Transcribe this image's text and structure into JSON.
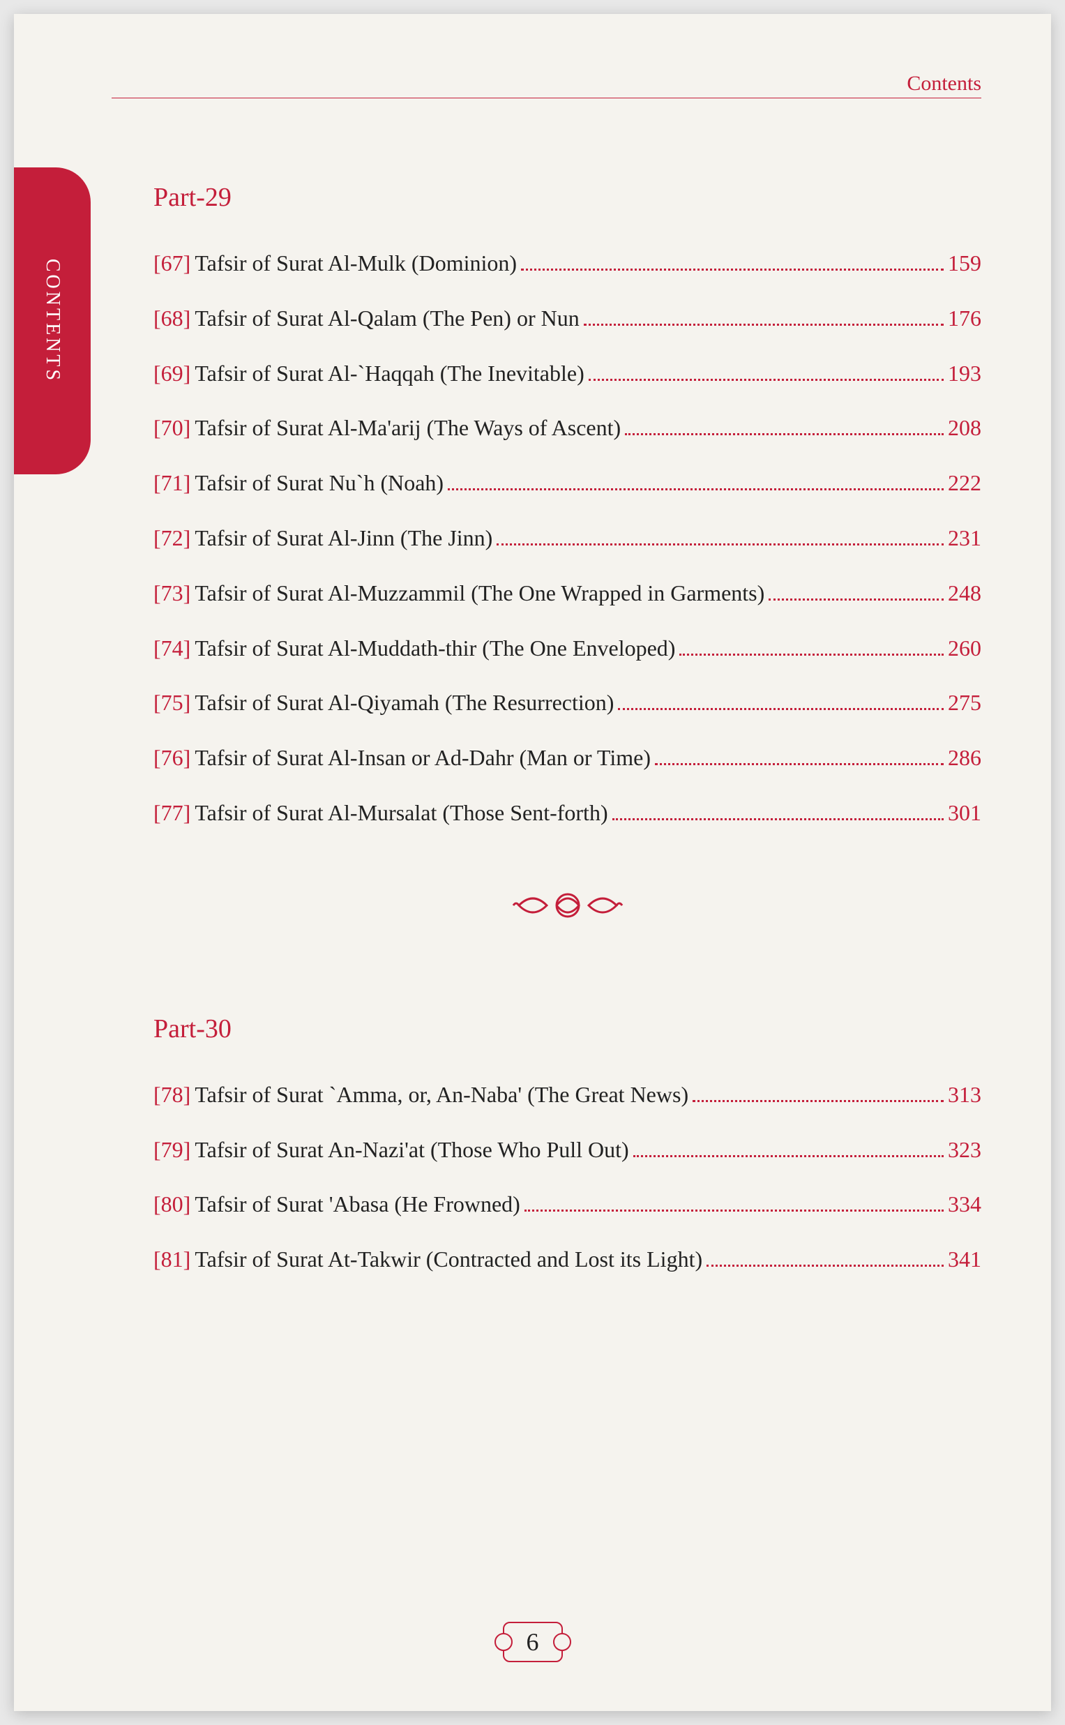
{
  "header": {
    "label": "Contents"
  },
  "sideTab": {
    "text": "CONTENTS"
  },
  "pageNumber": "6",
  "colors": {
    "accent": "#c41e3a",
    "text": "#222222",
    "background": "#f5f3ee"
  },
  "sections": [
    {
      "heading": "Part-29",
      "entries": [
        {
          "num": "[67]",
          "title": "Tafsir of Surat Al-Mulk (Dominion)",
          "page": "159"
        },
        {
          "num": "[68]",
          "title": "Tafsir of Surat Al-Qalam (The Pen) or Nun",
          "page": "176"
        },
        {
          "num": "[69]",
          "title": "Tafsir of Surat Al-`Haqqah (The Inevitable)",
          "page": "193"
        },
        {
          "num": "[70]",
          "title": "Tafsir of Surat Al-Ma'arij (The Ways of Ascent)",
          "page": "208"
        },
        {
          "num": "[71]",
          "title": "Tafsir of Surat Nu`h (Noah)",
          "page": "222"
        },
        {
          "num": "[72]",
          "title": "Tafsir of Surat Al-Jinn (The Jinn)",
          "page": "231"
        },
        {
          "num": "[73]",
          "title": "Tafsir of Surat Al-Muzzammil (The One Wrapped in Garments)",
          "page": "248"
        },
        {
          "num": "[74]",
          "title": "Tafsir of Surat Al-Muddath-thir (The One Enveloped)",
          "page": "260"
        },
        {
          "num": "[75]",
          "title": "Tafsir of Surat Al-Qiyamah (The Resurrection)",
          "page": "275"
        },
        {
          "num": "[76]",
          "title": "Tafsir of Surat Al-Insan or Ad-Dahr (Man or Time)",
          "page": "286"
        },
        {
          "num": "[77]",
          "title": "Tafsir of Surat Al-Mursalat (Those Sent-forth)",
          "page": "301"
        }
      ]
    },
    {
      "heading": "Part-30",
      "entries": [
        {
          "num": "[78]",
          "title": "Tafsir of Surat `Amma, or, An-Naba' (The Great News)",
          "page": "313"
        },
        {
          "num": "[79]",
          "title": "Tafsir of Surat An-Nazi'at  (Those Who Pull Out)",
          "page": "323"
        },
        {
          "num": "[80]",
          "title": "Tafsir of Surat 'Abasa (He Frowned)",
          "page": "334"
        },
        {
          "num": "[81]",
          "title": "Tafsir of Surat At-Takwir (Contracted and Lost its Light)",
          "page": "341"
        }
      ]
    }
  ]
}
